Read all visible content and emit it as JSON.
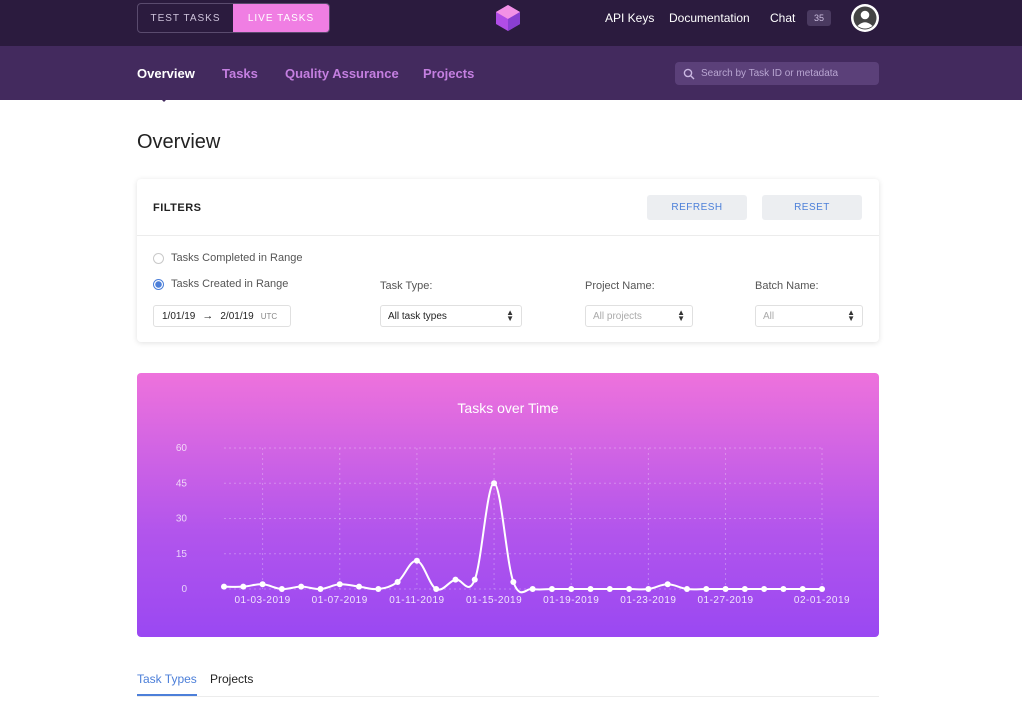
{
  "topbar": {
    "test_tasks_label": "TEST TASKS",
    "live_tasks_label": "LIVE TASKS",
    "links": {
      "api_keys": "API Keys",
      "documentation": "Documentation",
      "chat": "Chat"
    },
    "chat_count": "35",
    "logo_icon": "hexagon-logo-icon",
    "avatar_icon": "user-avatar-icon"
  },
  "nav": {
    "items": [
      {
        "label": "Overview",
        "active": true
      },
      {
        "label": "Tasks",
        "active": false
      },
      {
        "label": "Quality Assurance",
        "active": false
      },
      {
        "label": "Projects",
        "active": false
      }
    ],
    "search_placeholder": "Search by Task ID or metadata"
  },
  "page": {
    "title": "Overview"
  },
  "filters": {
    "title": "FILTERS",
    "refresh_label": "REFRESH",
    "reset_label": "RESET",
    "radio_completed": "Tasks Completed in Range",
    "radio_created": "Tasks Created in Range",
    "selected_radio": "created",
    "date_start": "1/01/19",
    "date_end": "2/01/19",
    "timezone": "UTC",
    "task_type_label": "Task Type:",
    "task_type_value": "All task types",
    "project_name_label": "Project Name:",
    "project_name_value": "All projects",
    "batch_name_label": "Batch Name:",
    "batch_name_value": "All"
  },
  "chart_data": {
    "type": "line",
    "title": "Tasks over Time",
    "xlabel": "",
    "ylabel": "",
    "ylim": [
      0,
      60
    ],
    "yticks": [
      0,
      15,
      30,
      45,
      60
    ],
    "grid": true,
    "x": [
      "01-01-2019",
      "01-02-2019",
      "01-03-2019",
      "01-04-2019",
      "01-05-2019",
      "01-06-2019",
      "01-07-2019",
      "01-08-2019",
      "01-09-2019",
      "01-10-2019",
      "01-11-2019",
      "01-12-2019",
      "01-13-2019",
      "01-14-2019",
      "01-15-2019",
      "01-16-2019",
      "01-17-2019",
      "01-18-2019",
      "01-19-2019",
      "01-20-2019",
      "01-21-2019",
      "01-22-2019",
      "01-23-2019",
      "01-24-2019",
      "01-25-2019",
      "01-26-2019",
      "01-27-2019",
      "01-28-2019",
      "01-29-2019",
      "01-30-2019",
      "01-31-2019",
      "02-01-2019"
    ],
    "xtick_labels": [
      "01-03-2019",
      "01-07-2019",
      "01-11-2019",
      "01-15-2019",
      "01-19-2019",
      "01-23-2019",
      "01-27-2019",
      "02-01-2019"
    ],
    "series": [
      {
        "values": [
          1,
          1,
          2,
          0,
          1,
          0,
          2,
          1,
          0,
          3,
          12,
          0,
          4,
          4,
          45,
          3,
          0,
          0,
          0,
          0,
          0,
          0,
          0,
          2,
          0,
          0,
          0,
          0,
          0,
          0,
          0,
          0
        ]
      }
    ],
    "line_color": "#ffffff"
  },
  "tabs": [
    {
      "label": "Task Types",
      "active": true
    },
    {
      "label": "Projects",
      "active": false
    }
  ]
}
